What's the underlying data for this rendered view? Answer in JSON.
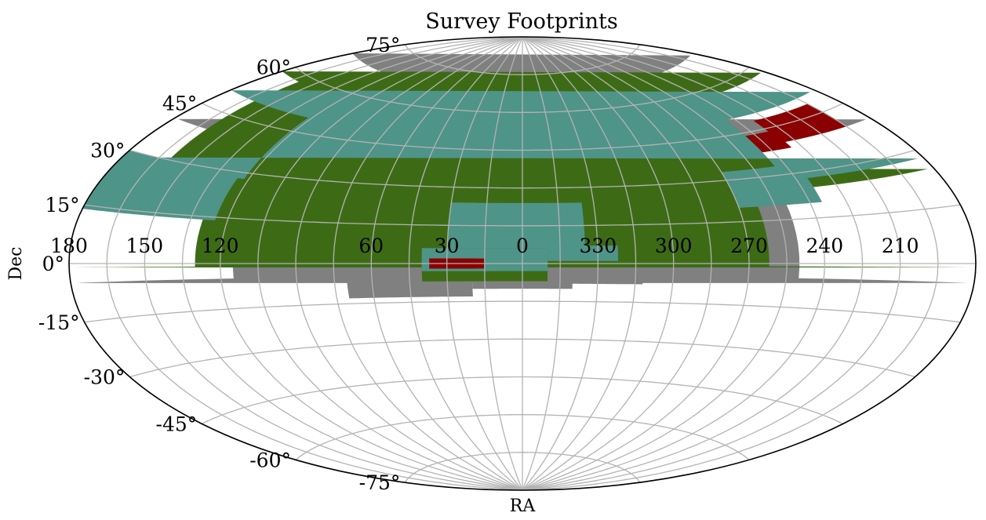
{
  "chart_data": {
    "type": "map",
    "projection": "aitoff",
    "title": "Survey Footprints",
    "xlabel": "RA",
    "ylabel": "Dec",
    "grid": true,
    "ra_ticks": [
      "60",
      "30",
      "0",
      "330",
      "300",
      "270",
      "240",
      "210",
      "180",
      "150",
      "120"
    ],
    "dec_ticks": [
      "75°",
      "60°",
      "45°",
      "30°",
      "15°",
      "0°",
      "-15°",
      "-30°",
      "-45°",
      "-60°",
      "-75°"
    ],
    "footprints": [
      {
        "color": "#808080",
        "regions": [
          {
            "ra": [
              70,
              45
            ],
            "dec": [
              -13,
              10
            ]
          },
          {
            "ra": [
              45,
              20
            ],
            "dec": [
              -13,
              25
            ]
          },
          {
            "ra": [
              20,
              340
            ],
            "dec": [
              -10,
              26
            ]
          },
          {
            "ra": [
              340,
              312
            ],
            "dec": [
              -8,
              22
            ]
          },
          {
            "ra": [
              275,
              125
            ],
            "dec": [
              0,
              68
            ]
          },
          {
            "ra": [
              250,
              115
            ],
            "dec": [
              -5,
              40
            ]
          }
        ]
      },
      {
        "color": "#3d6b15",
        "regions": [
          {
            "ra": [
              40,
              350
            ],
            "dec": [
              -7,
              6
            ]
          },
          {
            "ra": [
              30,
              335
            ],
            "dec": [
              4,
              25
            ]
          },
          {
            "ra": [
              350,
              322
            ],
            "dec": [
              -1,
              7
            ]
          },
          {
            "ra": [
              262,
              130
            ],
            "dec": [
              -1,
              28
            ]
          },
          {
            "ra": [
              245,
              160
            ],
            "dec": [
              25,
              58
            ]
          }
        ]
      },
      {
        "color": "#4f9488",
        "regions": [
          {
            "ra": [
              40,
              350
            ],
            "dec": [
              -3,
              6
            ]
          },
          {
            "ra": [
              30,
              335
            ],
            "dec": [
              6,
              24
            ]
          },
          {
            "ra": [
              350,
              322
            ],
            "dec": [
              1,
              7
            ]
          },
          {
            "ra": [
              270,
              235
            ],
            "dec": [
              20,
              33
            ]
          },
          {
            "ra": [
              245,
              122
            ],
            "dec": [
              28,
              50
            ]
          },
          {
            "ra": [
              180,
              125
            ],
            "dec": [
              14,
              30
            ]
          }
        ]
      },
      {
        "color": "#8b0000",
        "regions": [
          {
            "ra": [
              37,
              15
            ],
            "dec": [
              -2,
              2
            ]
          },
          {
            "ra": [
              245,
              230
            ],
            "dec": [
              38,
              44
            ]
          },
          {
            "ra": [
              232,
              195
            ],
            "dec": [
              40,
              48
            ]
          }
        ]
      }
    ]
  }
}
